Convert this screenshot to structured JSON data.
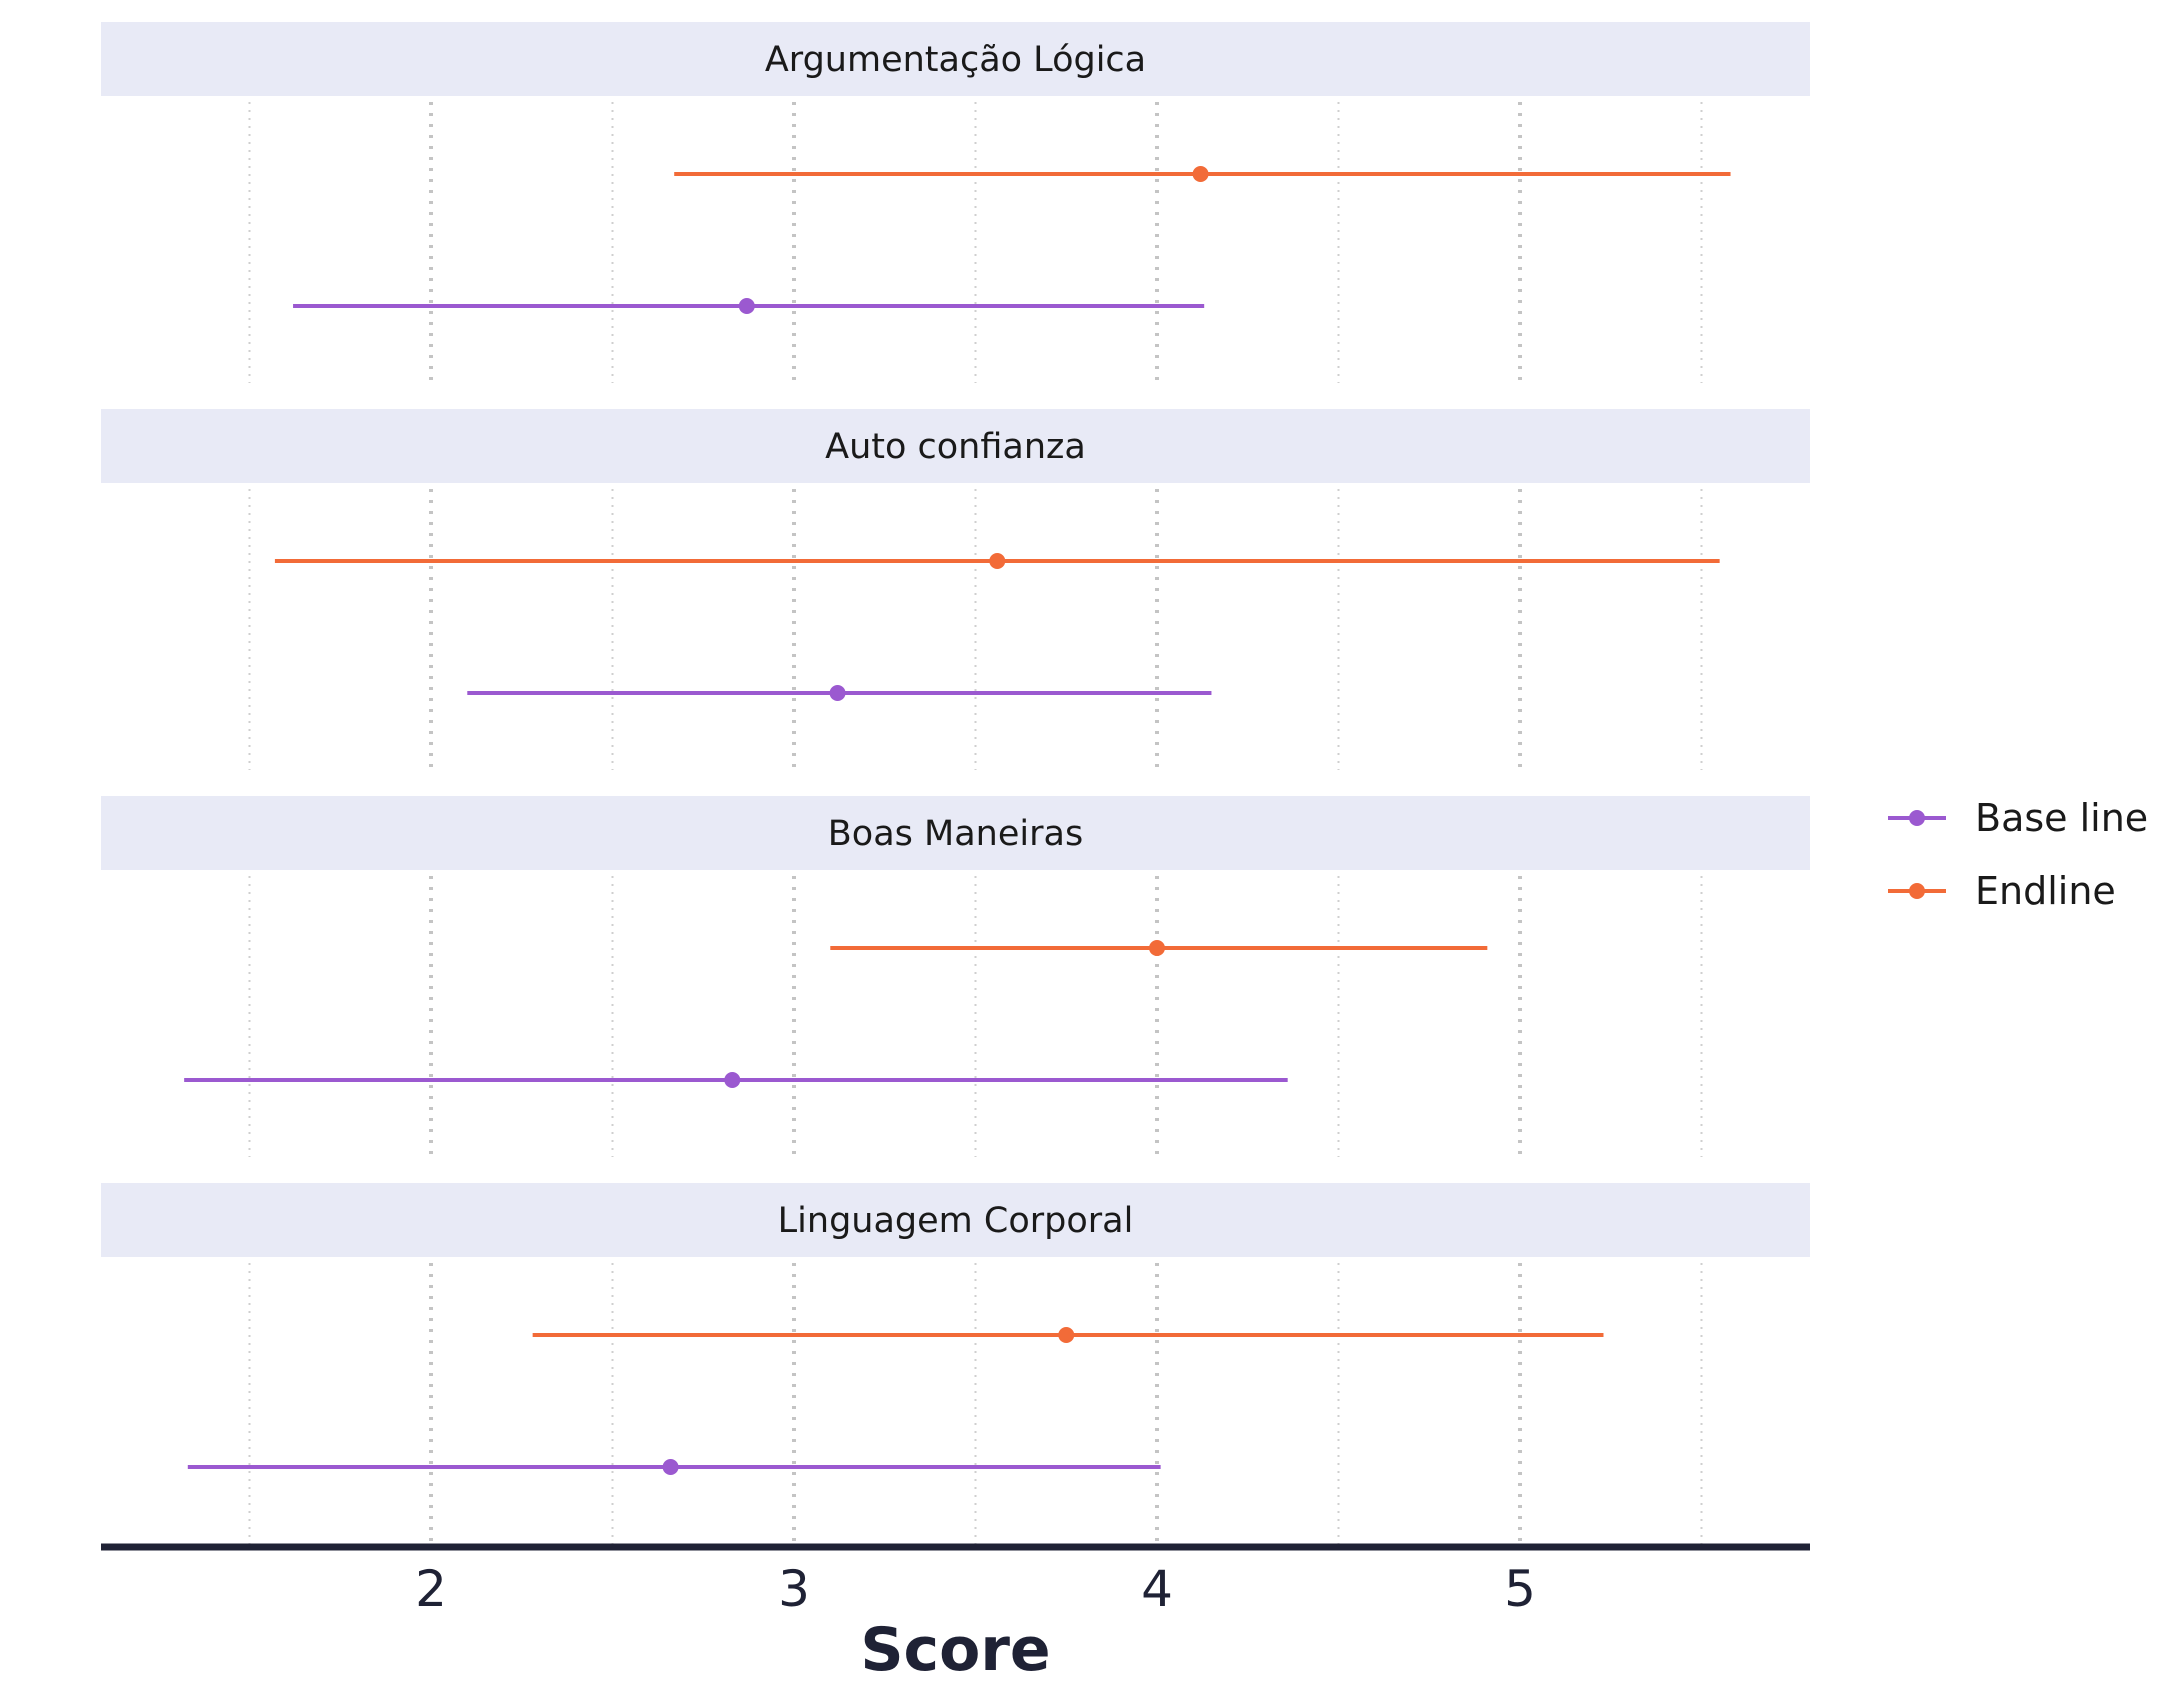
{
  "chart_data": {
    "type": "errorbar",
    "xlabel": "Score",
    "xlim": [
      1.1,
      5.8
    ],
    "major_ticks": [
      2,
      3,
      4,
      5
    ],
    "minor_ticks": [
      1.5,
      2.5,
      3.5,
      4.5,
      5.5
    ],
    "grid": "dotted vertical",
    "legend_position": "right",
    "series": [
      {
        "name": "Base line",
        "color": "#9b59d0"
      },
      {
        "name": "Endline",
        "color": "#f26b38"
      }
    ],
    "panels": [
      {
        "title": "Argumentação Lógica",
        "points": [
          {
            "series": "Endline",
            "mean": 4.12,
            "low": 2.67,
            "high": 5.58
          },
          {
            "series": "Base line",
            "mean": 2.87,
            "low": 1.62,
            "high": 4.13
          }
        ]
      },
      {
        "title": "Auto confianza",
        "points": [
          {
            "series": "Endline",
            "mean": 3.56,
            "low": 1.57,
            "high": 5.55
          },
          {
            "series": "Base line",
            "mean": 3.12,
            "low": 2.1,
            "high": 4.15
          }
        ]
      },
      {
        "title": "Boas Maneiras",
        "points": [
          {
            "series": "Endline",
            "mean": 4.0,
            "low": 3.1,
            "high": 4.91
          },
          {
            "series": "Base line",
            "mean": 2.83,
            "low": 1.32,
            "high": 4.36
          }
        ]
      },
      {
        "title": "Linguagem Corporal",
        "points": [
          {
            "series": "Endline",
            "mean": 3.75,
            "low": 2.28,
            "high": 5.23
          },
          {
            "series": "Base line",
            "mean": 2.66,
            "low": 1.33,
            "high": 4.01
          }
        ]
      }
    ]
  }
}
